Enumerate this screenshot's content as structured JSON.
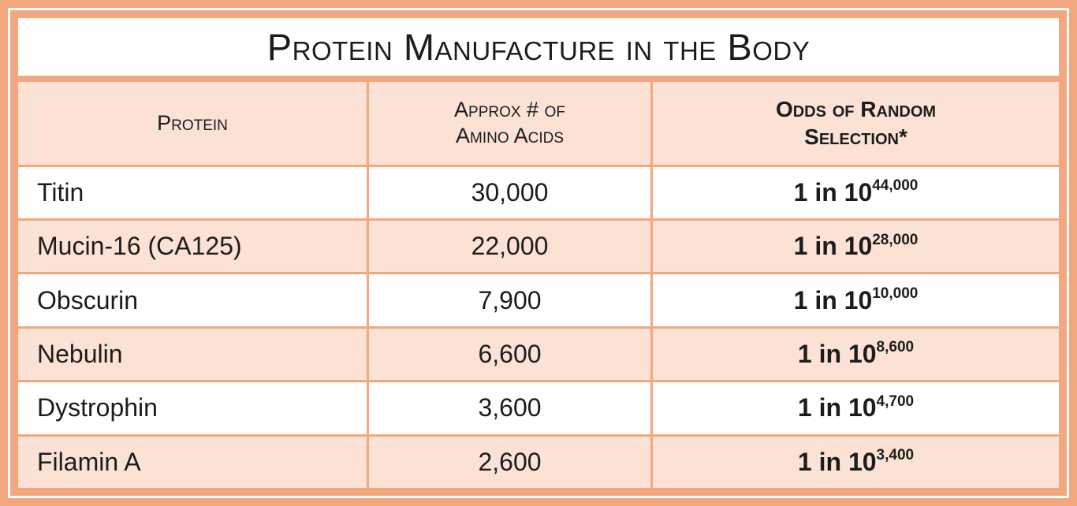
{
  "table": {
    "title": "Protein Manufacture in the Body",
    "header": {
      "protein": "Protein",
      "amino_line1": "Approx # of",
      "amino_line2": "Amino Acids",
      "odds_line1": "Odds of Random",
      "odds_line2": "Selection*"
    },
    "rows": [
      {
        "protein": "Titin",
        "amino_acids": "30,000",
        "odds_base": "1 in 10",
        "odds_exp": "44,000"
      },
      {
        "protein": "Mucin-16 (CA125)",
        "amino_acids": "22,000",
        "odds_base": "1 in 10",
        "odds_exp": "28,000"
      },
      {
        "protein": "Obscurin",
        "amino_acids": "7,900",
        "odds_base": "1 in 10",
        "odds_exp": "10,000"
      },
      {
        "protein": "Nebulin",
        "amino_acids": "6,600",
        "odds_base": "1 in 10",
        "odds_exp": "8,600"
      },
      {
        "protein": "Dystrophin",
        "amino_acids": "3,600",
        "odds_base": "1 in 10",
        "odds_exp": "4,700"
      },
      {
        "protein": "Filamin A",
        "amino_acids": "2,600",
        "odds_base": "1 in 10",
        "odds_exp": "3,400"
      }
    ],
    "colors": {
      "frame": "#F2A77E",
      "row_alt": "#FBE2D4",
      "row": "#FFFFFF",
      "text": "#1C1C1C",
      "inner_line": "#FFFFFF"
    }
  },
  "chart_data": {
    "type": "table",
    "title": "Protein Manufacture in the Body",
    "columns": [
      "Protein",
      "Approx # of Amino Acids",
      "Odds of Random Selection*"
    ],
    "rows": [
      [
        "Titin",
        30000,
        "1 in 10^44,000"
      ],
      [
        "Mucin-16 (CA125)",
        22000,
        "1 in 10^28,000"
      ],
      [
        "Obscurin",
        7900,
        "1 in 10^10,000"
      ],
      [
        "Nebulin",
        6600,
        "1 in 10^8,600"
      ],
      [
        "Dystrophin",
        3600,
        "1 in 10^4,700"
      ],
      [
        "Filamin A",
        2600,
        "1 in 10^3,400"
      ]
    ]
  }
}
